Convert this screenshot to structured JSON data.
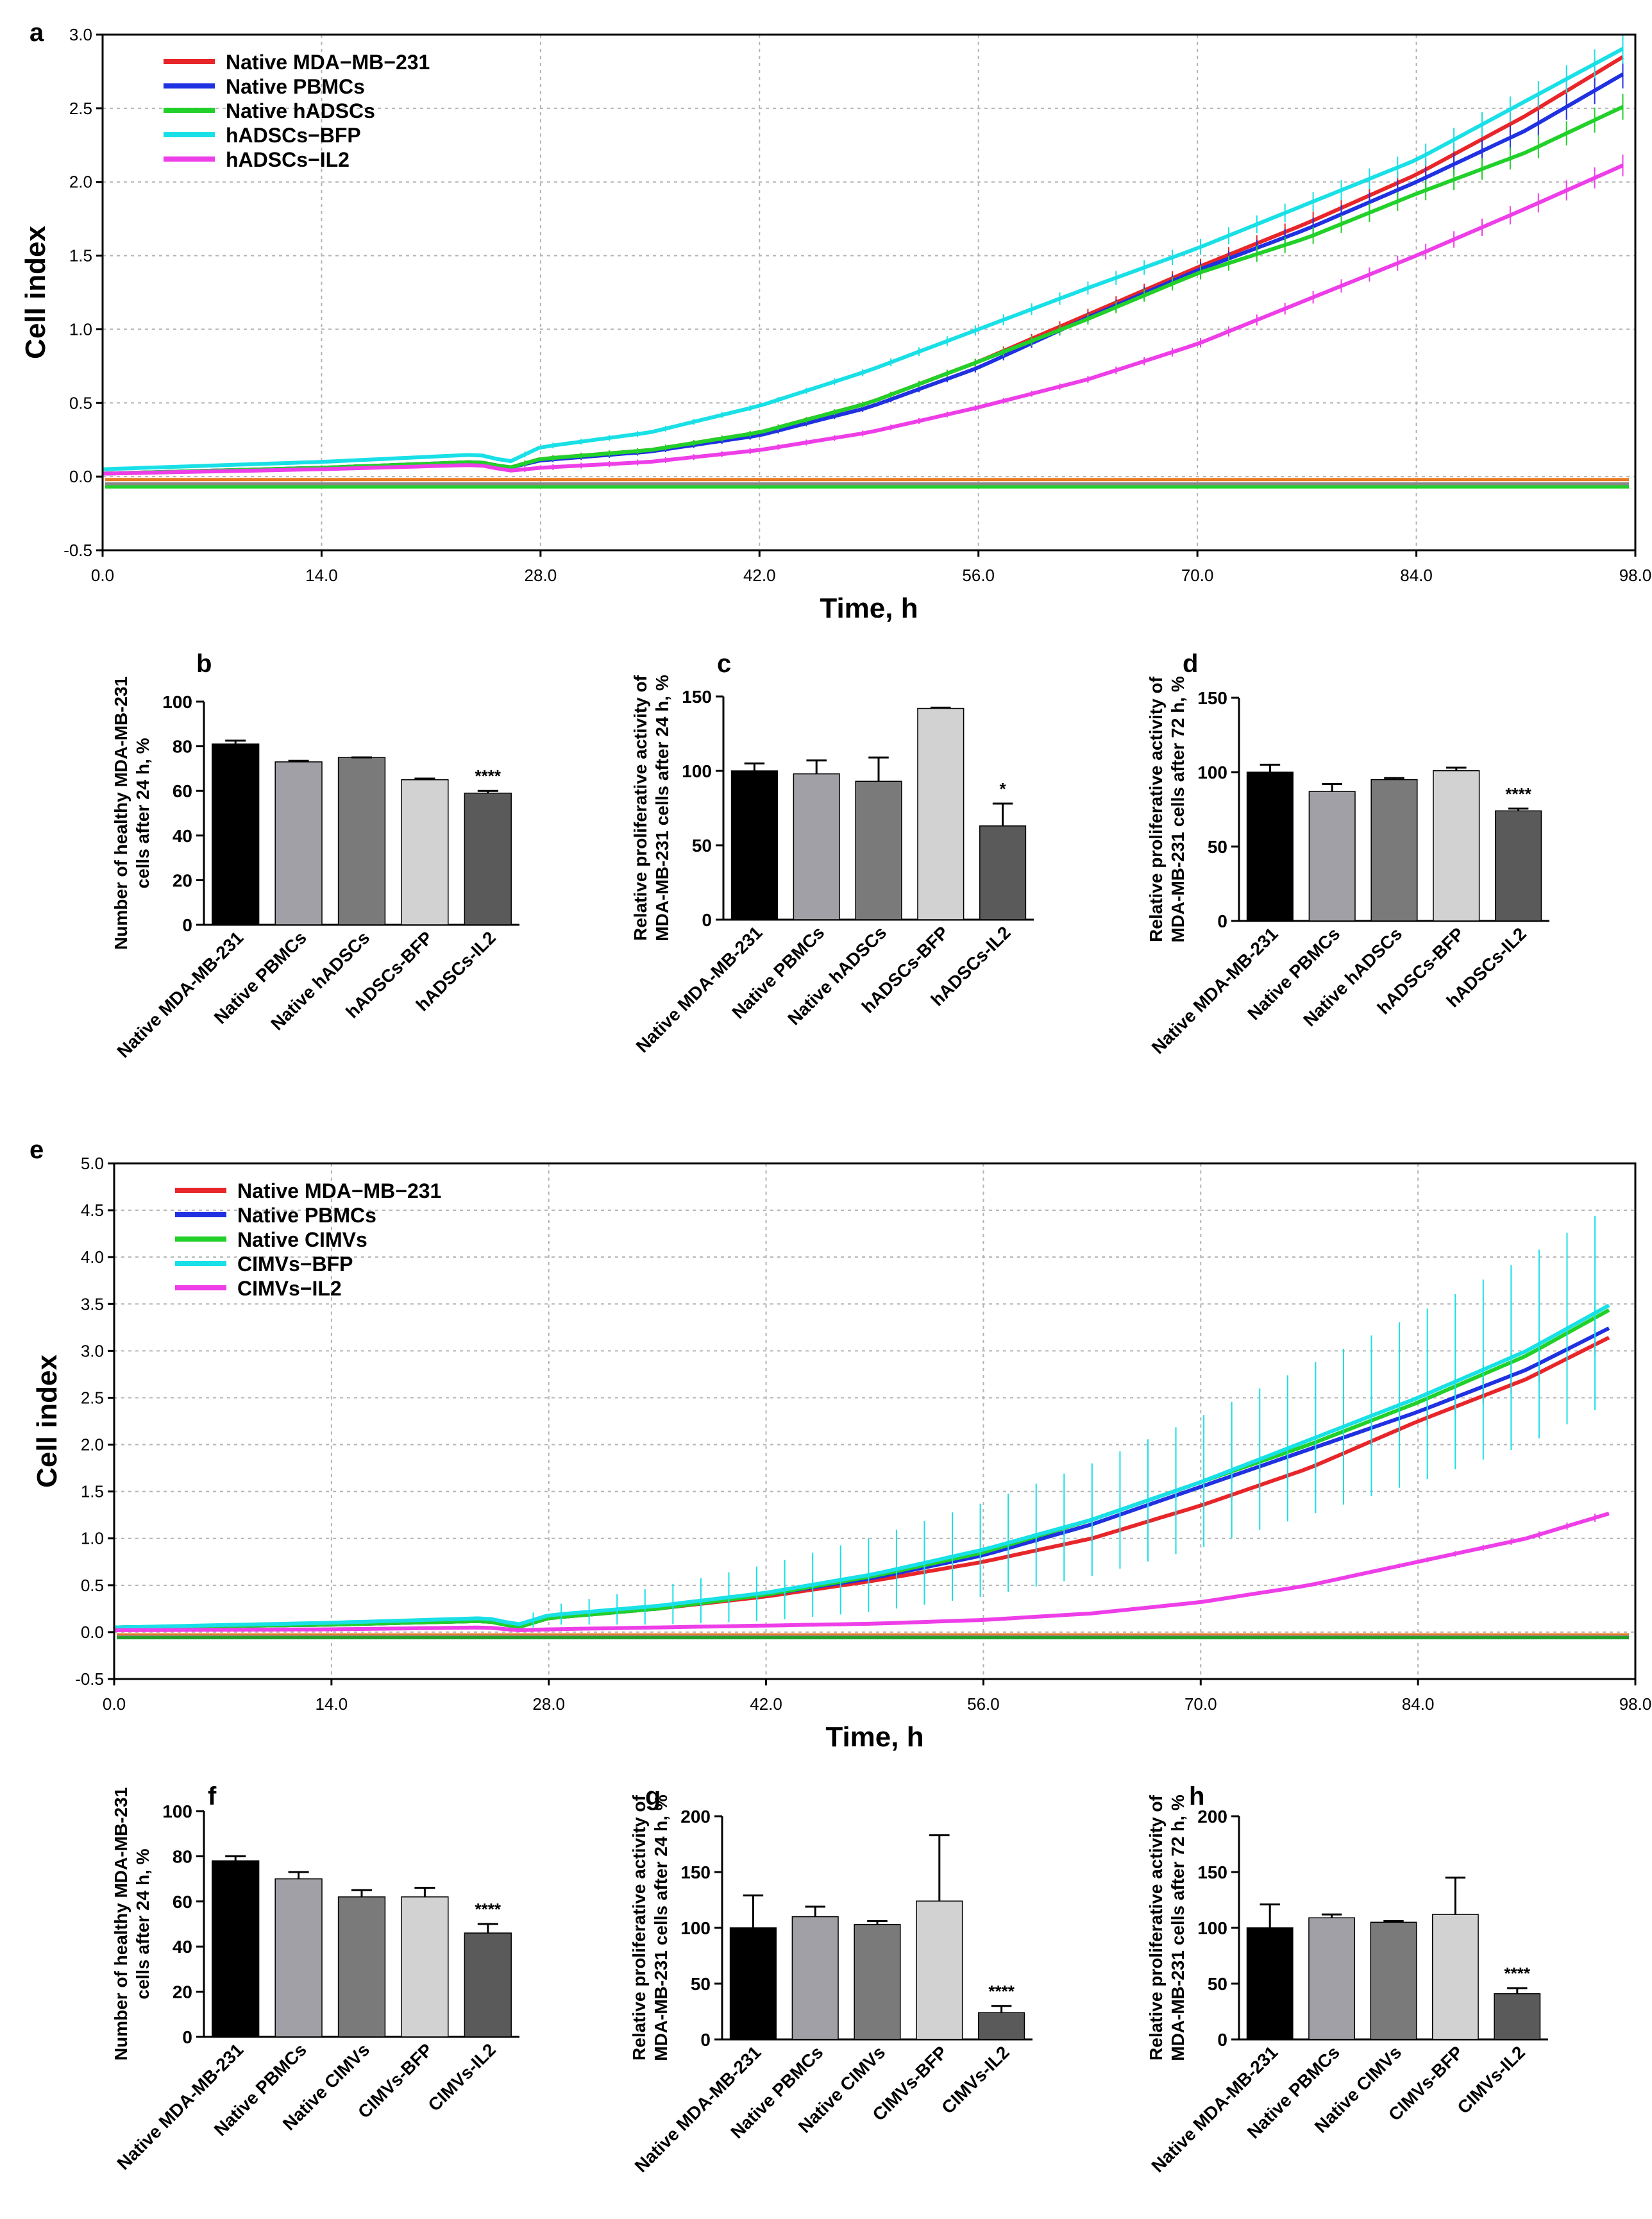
{
  "chart_data": [
    {
      "panel": "a",
      "type": "line",
      "xlabel": "Time, h",
      "ylabel": "Cell index",
      "xlim": [
        0,
        98
      ],
      "ylim": [
        -0.5,
        3.0
      ],
      "xticks": [
        "0.0",
        "14.0",
        "28.0",
        "42.0",
        "56.0",
        "70.0",
        "84.0",
        "98.0"
      ],
      "yticks": [
        "-0.5",
        "0.0",
        "0.5",
        "1.0",
        "1.5",
        "2.0",
        "2.5",
        "3.0"
      ],
      "grid": "dashed",
      "legend_position": "top-left",
      "series": [
        {
          "name": "Native MDA−MB−231",
          "color": "#e8262a",
          "x": [
            0,
            14,
            24,
            26,
            28,
            35,
            42,
            49,
            56,
            63,
            70,
            77,
            84,
            91,
            98
          ],
          "y": [
            0.02,
            0.06,
            0.1,
            0.06,
            0.12,
            0.18,
            0.3,
            0.5,
            0.78,
            1.1,
            1.42,
            1.72,
            2.05,
            2.45,
            2.9
          ]
        },
        {
          "name": "Native PBMCs",
          "color": "#1f31e0",
          "x": [
            0,
            14,
            24,
            26,
            28,
            35,
            42,
            49,
            56,
            63,
            70,
            77,
            84,
            91,
            98
          ],
          "y": [
            0.02,
            0.06,
            0.1,
            0.06,
            0.11,
            0.17,
            0.28,
            0.47,
            0.74,
            1.08,
            1.4,
            1.68,
            2.0,
            2.35,
            2.78
          ]
        },
        {
          "name": "Native hADSCs",
          "color": "#22d02a",
          "x": [
            0,
            14,
            24,
            26,
            28,
            35,
            42,
            49,
            56,
            63,
            70,
            77,
            84,
            91,
            98
          ],
          "y": [
            0.02,
            0.06,
            0.1,
            0.06,
            0.12,
            0.18,
            0.3,
            0.5,
            0.78,
            1.07,
            1.38,
            1.62,
            1.92,
            2.2,
            2.55
          ]
        },
        {
          "name": "hADSCs−BFP",
          "color": "#19e0e6",
          "x": [
            0,
            14,
            24,
            26,
            28,
            35,
            42,
            49,
            56,
            63,
            70,
            77,
            84,
            91,
            98
          ],
          "y": [
            0.05,
            0.1,
            0.15,
            0.1,
            0.2,
            0.3,
            0.48,
            0.72,
            1.0,
            1.28,
            1.55,
            1.85,
            2.15,
            2.55,
            2.95
          ]
        },
        {
          "name": "hADSCs−IL2",
          "color": "#ee3ee8",
          "x": [
            0,
            14,
            24,
            26,
            28,
            35,
            42,
            49,
            56,
            63,
            70,
            77,
            84,
            91,
            98
          ],
          "y": [
            0.02,
            0.05,
            0.08,
            0.04,
            0.06,
            0.1,
            0.18,
            0.3,
            0.47,
            0.66,
            0.9,
            1.2,
            1.5,
            1.82,
            2.15
          ]
        }
      ],
      "baseline_series": [
        {
          "color": "#e87a22",
          "y": -0.02
        },
        {
          "color": "#888888",
          "y": -0.05
        },
        {
          "color": "#22d02a",
          "y": -0.07
        }
      ]
    },
    {
      "panel": "b",
      "type": "bar",
      "ylabel": "Number of healthy MDA-MB-231 cells after 24 h, %",
      "categories": [
        "Native MDA-MB-231",
        "Native PBMCs",
        "Native hADSCs",
        "hADSCs-BFP",
        "hADSCs-IL2"
      ],
      "values": [
        81,
        73,
        75,
        65,
        59
      ],
      "errors": [
        1.5,
        0.5,
        0,
        0.5,
        1
      ],
      "ylim": [
        0,
        100
      ],
      "yticks": [
        "0",
        "20",
        "40",
        "60",
        "80",
        "100"
      ],
      "colors": [
        "#000000",
        "#a0a0a6",
        "#7a7a7a",
        "#d2d2d2",
        "#5a5a5a"
      ],
      "significance": [
        "",
        "",
        "",
        "",
        "****"
      ]
    },
    {
      "panel": "c",
      "type": "bar",
      "ylabel": "Relative proliferative activity of MDA-MB-231 cells after 24 h, %",
      "categories": [
        "Native MDA-MB-231",
        "Native PBMCs",
        "Native hADSCs",
        "hADSCs-BFP",
        "hADSCs-IL2"
      ],
      "values": [
        100,
        98,
        93,
        142,
        63
      ],
      "errors": [
        5,
        9,
        16,
        0.5,
        15
      ],
      "ylim": [
        0,
        150
      ],
      "yticks": [
        "0",
        "50",
        "100",
        "150"
      ],
      "colors": [
        "#000000",
        "#a0a0a6",
        "#7a7a7a",
        "#d2d2d2",
        "#5a5a5a"
      ],
      "significance": [
        "",
        "",
        "",
        "",
        "*"
      ]
    },
    {
      "panel": "d",
      "type": "bar",
      "ylabel": "Relative proliferative activity of MDA-MB-231 cells after 72 h, %",
      "categories": [
        "Native MDA-MB-231",
        "Native PBMCs",
        "Native hADSCs",
        "hADSCs-BFP",
        "hADSCs-IL2"
      ],
      "values": [
        100,
        87,
        95,
        101,
        74
      ],
      "errors": [
        5,
        5,
        1,
        2,
        1.5
      ],
      "ylim": [
        0,
        150
      ],
      "yticks": [
        "0",
        "50",
        "100",
        "150"
      ],
      "colors": [
        "#000000",
        "#a0a0a6",
        "#7a7a7a",
        "#d2d2d2",
        "#5a5a5a"
      ],
      "significance": [
        "",
        "",
        "",
        "",
        "****"
      ]
    },
    {
      "panel": "e",
      "type": "line",
      "xlabel": "Time, h",
      "ylabel": "Cell index",
      "xlim": [
        0,
        98
      ],
      "ylim": [
        -0.5,
        5.0
      ],
      "xticks": [
        "0.0",
        "14.0",
        "28.0",
        "42.0",
        "56.0",
        "70.0",
        "84.0",
        "98.0"
      ],
      "yticks": [
        "-0.5",
        "0.0",
        "0.5",
        "1.0",
        "1.5",
        "2.0",
        "2.5",
        "3.0",
        "3.5",
        "4.0",
        "4.5",
        "5.0"
      ],
      "grid": "dashed",
      "legend_position": "top-left",
      "series": [
        {
          "name": "Native MDA−MB−231",
          "color": "#e8262a",
          "x": [
            0,
            14,
            24,
            26,
            28,
            35,
            42,
            49,
            56,
            63,
            70,
            77,
            84,
            91,
            97
          ],
          "y": [
            0.05,
            0.08,
            0.12,
            0.05,
            0.15,
            0.25,
            0.38,
            0.55,
            0.75,
            1.0,
            1.35,
            1.75,
            2.25,
            2.7,
            3.2
          ]
        },
        {
          "name": "Native PBMCs",
          "color": "#1f31e0",
          "x": [
            0,
            14,
            24,
            26,
            28,
            35,
            42,
            49,
            56,
            63,
            70,
            77,
            84,
            91,
            97
          ],
          "y": [
            0.05,
            0.08,
            0.12,
            0.05,
            0.15,
            0.25,
            0.4,
            0.58,
            0.82,
            1.15,
            1.55,
            1.95,
            2.35,
            2.8,
            3.3
          ]
        },
        {
          "name": "Native CIMVs",
          "color": "#22d02a",
          "x": [
            0,
            14,
            24,
            26,
            28,
            35,
            42,
            49,
            56,
            63,
            70,
            77,
            84,
            91,
            97
          ],
          "y": [
            0.05,
            0.08,
            0.12,
            0.05,
            0.15,
            0.25,
            0.4,
            0.6,
            0.85,
            1.2,
            1.6,
            2.0,
            2.45,
            2.95,
            3.5
          ]
        },
        {
          "name": "CIMVs−BFP",
          "color": "#19e0e6",
          "x": [
            0,
            14,
            24,
            26,
            28,
            35,
            42,
            49,
            56,
            63,
            70,
            77,
            84,
            91,
            97
          ],
          "y": [
            0.05,
            0.1,
            0.15,
            0.08,
            0.18,
            0.28,
            0.42,
            0.62,
            0.88,
            1.2,
            1.6,
            2.05,
            2.5,
            3.0,
            3.55
          ],
          "error": [
            0.02,
            0.04,
            0.06,
            0.06,
            0.1,
            0.2,
            0.3,
            0.4,
            0.5,
            0.6,
            0.7,
            0.8,
            0.9,
            1.0,
            1.05
          ]
        },
        {
          "name": "CIMVs−IL2",
          "color": "#ee3ee8",
          "x": [
            0,
            14,
            24,
            26,
            28,
            35,
            42,
            49,
            56,
            63,
            70,
            77,
            84,
            91,
            97
          ],
          "y": [
            0.02,
            0.03,
            0.05,
            0.02,
            0.03,
            0.05,
            0.07,
            0.09,
            0.13,
            0.2,
            0.32,
            0.5,
            0.75,
            1.0,
            1.3
          ]
        }
      ],
      "baseline_series": [
        {
          "color": "#e87a22",
          "y": -0.03
        },
        {
          "color": "#888888",
          "y": -0.05
        },
        {
          "color": "#22a02a",
          "y": -0.06
        }
      ]
    },
    {
      "panel": "f",
      "type": "bar",
      "ylabel": "Number of healthy MDA-MB-231 cells after 24 h, %",
      "categories": [
        "Native MDA-MB-231",
        "Native PBMCs",
        "Native CIMVs",
        "CIMVs-BFP",
        "CIMVs-IL2"
      ],
      "values": [
        78,
        70,
        62,
        62,
        46
      ],
      "errors": [
        2,
        3,
        3,
        4,
        4
      ],
      "ylim": [
        0,
        100
      ],
      "yticks": [
        "0",
        "20",
        "40",
        "60",
        "80",
        "100"
      ],
      "colors": [
        "#000000",
        "#a0a0a6",
        "#7a7a7a",
        "#d2d2d2",
        "#5a5a5a"
      ],
      "significance": [
        "",
        "",
        "",
        "",
        "****"
      ]
    },
    {
      "panel": "g",
      "type": "bar",
      "ylabel": "Relative proliferative activity of MDA-MB-231 cells after 24 h, %",
      "categories": [
        "Native MDA-MB-231",
        "Native PBMCs",
        "Native CIMVs",
        "CIMVs-BFP",
        "CIMVs-IL2"
      ],
      "values": [
        100,
        110,
        103,
        124,
        24
      ],
      "errors": [
        29,
        9,
        3,
        59,
        6
      ],
      "ylim": [
        0,
        200
      ],
      "yticks": [
        "0",
        "50",
        "100",
        "150",
        "200"
      ],
      "colors": [
        "#000000",
        "#a0a0a6",
        "#7a7a7a",
        "#d2d2d2",
        "#5a5a5a"
      ],
      "significance": [
        "",
        "",
        "",
        "",
        "****"
      ]
    },
    {
      "panel": "h",
      "type": "bar",
      "ylabel": "Relative proliferative activity of MDA-MB-231 cells after 72 h, %",
      "categories": [
        "Native MDA-MB-231",
        "Native PBMCs",
        "Native CIMVs",
        "CIMVs-BFP",
        "CIMVs-IL2"
      ],
      "values": [
        100,
        109,
        105,
        112,
        41
      ],
      "errors": [
        21,
        3,
        1,
        33,
        5
      ],
      "ylim": [
        0,
        200
      ],
      "yticks": [
        "0",
        "50",
        "100",
        "150",
        "200"
      ],
      "colors": [
        "#000000",
        "#a0a0a6",
        "#7a7a7a",
        "#d2d2d2",
        "#5a5a5a"
      ],
      "significance": [
        "",
        "",
        "",
        "",
        "****"
      ]
    }
  ]
}
